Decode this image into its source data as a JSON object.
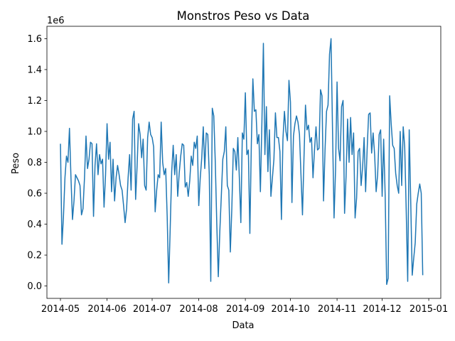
{
  "chart_data": {
    "type": "line",
    "title": "Monstros Peso vs Data",
    "xlabel": "Data",
    "ylabel": "Peso",
    "y_offset_label": "1e6",
    "line_color": "#1f77b4",
    "grid": false,
    "legend": "none",
    "xlim": [
      "2014-04-22",
      "2015-01-09"
    ],
    "ylim": [
      -0.08,
      1.68
    ],
    "x_ticks": [
      "2014-05",
      "2014-06",
      "2014-07",
      "2014-08",
      "2014-09",
      "2014-10",
      "2014-11",
      "2014-12",
      "2015-01"
    ],
    "y_ticks": [
      "0.0",
      "0.2",
      "0.4",
      "0.6",
      "0.8",
      "1.0",
      "1.2",
      "1.4",
      "1.6"
    ],
    "series": [
      {
        "start_date": "2014-05-01",
        "step_days": 1,
        "y": [
          0.92,
          0.27,
          0.45,
          0.7,
          0.84,
          0.8,
          1.02,
          0.7,
          0.43,
          0.55,
          0.72,
          0.7,
          0.68,
          0.65,
          0.46,
          0.5,
          0.7,
          0.97,
          0.76,
          0.82,
          0.93,
          0.92,
          0.45,
          0.78,
          0.92,
          0.72,
          0.85,
          0.79,
          0.82,
          0.51,
          0.72,
          1.05,
          0.82,
          0.93,
          0.61,
          0.82,
          0.55,
          0.7,
          0.78,
          0.72,
          0.65,
          0.62,
          0.52,
          0.41,
          0.5,
          0.7,
          0.85,
          0.62,
          1.08,
          1.13,
          0.56,
          0.78,
          1.05,
          0.98,
          0.83,
          0.95,
          0.65,
          0.62,
          0.96,
          1.06,
          0.98,
          0.96,
          0.9,
          0.48,
          0.62,
          0.72,
          0.7,
          1.06,
          0.8,
          0.72,
          0.76,
          0.45,
          0.02,
          0.37,
          0.74,
          0.91,
          0.72,
          0.85,
          0.58,
          0.73,
          0.84,
          0.92,
          0.91,
          0.64,
          0.67,
          0.58,
          0.68,
          0.84,
          0.78,
          0.93,
          0.89,
          0.97,
          0.52,
          0.7,
          0.83,
          1.03,
          0.76,
          0.99,
          0.98,
          0.72,
          0.03,
          1.15,
          1.1,
          0.8,
          0.4,
          0.06,
          0.35,
          0.58,
          0.82,
          0.87,
          1.03,
          0.65,
          0.62,
          0.22,
          0.5,
          0.89,
          0.87,
          0.75,
          0.96,
          0.7,
          0.41,
          0.99,
          0.95,
          1.25,
          0.85,
          0.88,
          0.34,
          0.93,
          1.34,
          1.13,
          1.14,
          0.92,
          0.98,
          0.61,
          1.05,
          1.57,
          0.85,
          1.16,
          0.74,
          1.01,
          0.58,
          0.7,
          0.82,
          1.12,
          0.96,
          0.96,
          0.87,
          0.43,
          0.95,
          1.13,
          1.0,
          0.94,
          1.33,
          1.19,
          0.54,
          0.97,
          1.05,
          1.1,
          1.06,
          0.98,
          0.72,
          0.46,
          0.83,
          1.17,
          1.01,
          1.04,
          0.93,
          0.96,
          0.7,
          0.88,
          1.03,
          0.88,
          0.89,
          1.27,
          1.23,
          0.55,
          0.88,
          1.13,
          1.17,
          1.5,
          1.6,
          1.0,
          0.44,
          0.75,
          1.32,
          0.89,
          0.81,
          1.16,
          1.2,
          0.47,
          0.71,
          1.08,
          0.8,
          1.09,
          0.85,
          0.99,
          0.44,
          0.57,
          0.87,
          0.89,
          0.65,
          0.77,
          0.96,
          0.61,
          0.88,
          1.11,
          1.12,
          0.86,
          0.99,
          0.85,
          0.61,
          0.72,
          0.98,
          1.01,
          0.58,
          0.95,
          0.59,
          0.01,
          0.05,
          1.23,
          1.05,
          0.91,
          0.89,
          0.73,
          0.65,
          0.6,
          1.0,
          0.65,
          1.03,
          0.9,
          0.49,
          0.03,
          1.01,
          0.55,
          0.07,
          0.18,
          0.28,
          0.53,
          0.6,
          0.66,
          0.6,
          0.07
        ]
      }
    ]
  }
}
